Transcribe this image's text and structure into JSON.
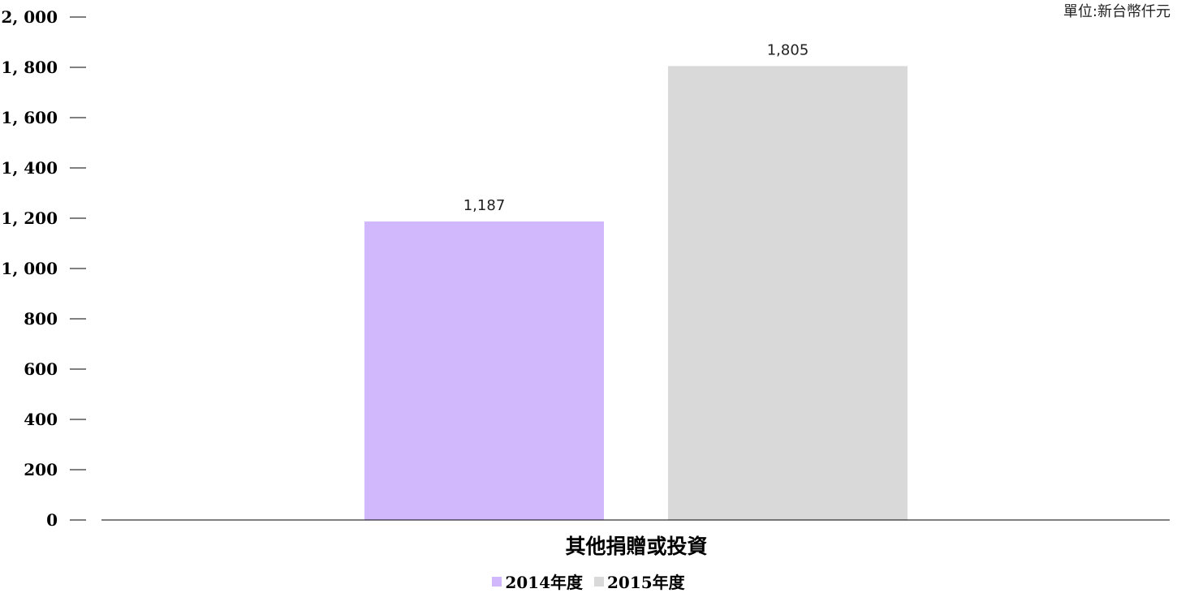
{
  "unit_note": "單位:新台幣仟元",
  "chart_data": {
    "type": "bar",
    "categories": [
      "其他捐贈或投資"
    ],
    "series": [
      {
        "name": "2014年度",
        "values": [
          1187
        ],
        "color": "#d1b8fd"
      },
      {
        "name": "2015年度",
        "values": [
          1805
        ],
        "color": "#d9d9d9"
      }
    ],
    "data_labels": [
      "1,187",
      "1,805"
    ],
    "yticks": [
      0,
      200,
      400,
      600,
      800,
      1000,
      1200,
      1400,
      1600,
      1800,
      2000
    ],
    "ytick_labels": [
      "0",
      "200",
      "400",
      "600",
      "800",
      "1, 000",
      "1, 200",
      "1, 400",
      "1, 600",
      "1, 800",
      "2, 000"
    ],
    "ylim": [
      0,
      2000
    ],
    "title": "",
    "xlabel": "",
    "ylabel": "",
    "grid": false,
    "legend_position": "bottom"
  }
}
